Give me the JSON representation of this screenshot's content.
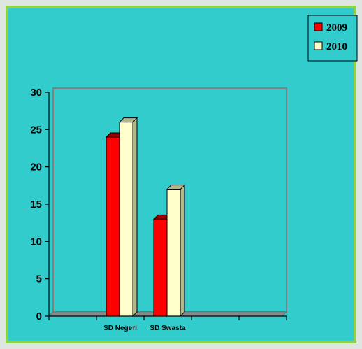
{
  "chart_data": {
    "type": "bar",
    "categories": [
      "SD Negeri",
      "SD Swasta"
    ],
    "series": [
      {
        "name": "2009",
        "values": [
          24,
          13
        ],
        "color": "#ff0000",
        "shade": "#990000"
      },
      {
        "name": "2010",
        "values": [
          26,
          17
        ],
        "color": "#ffffcc",
        "shade": "#b5b58a"
      }
    ],
    "ylim": [
      0,
      30
    ],
    "yticks": [
      0,
      5,
      10,
      15,
      20,
      25,
      30
    ],
    "grid": false,
    "legend_position": "top-right",
    "background": "#33cccc",
    "frame_color": "#8ed14a",
    "plot_border": "#808080"
  }
}
